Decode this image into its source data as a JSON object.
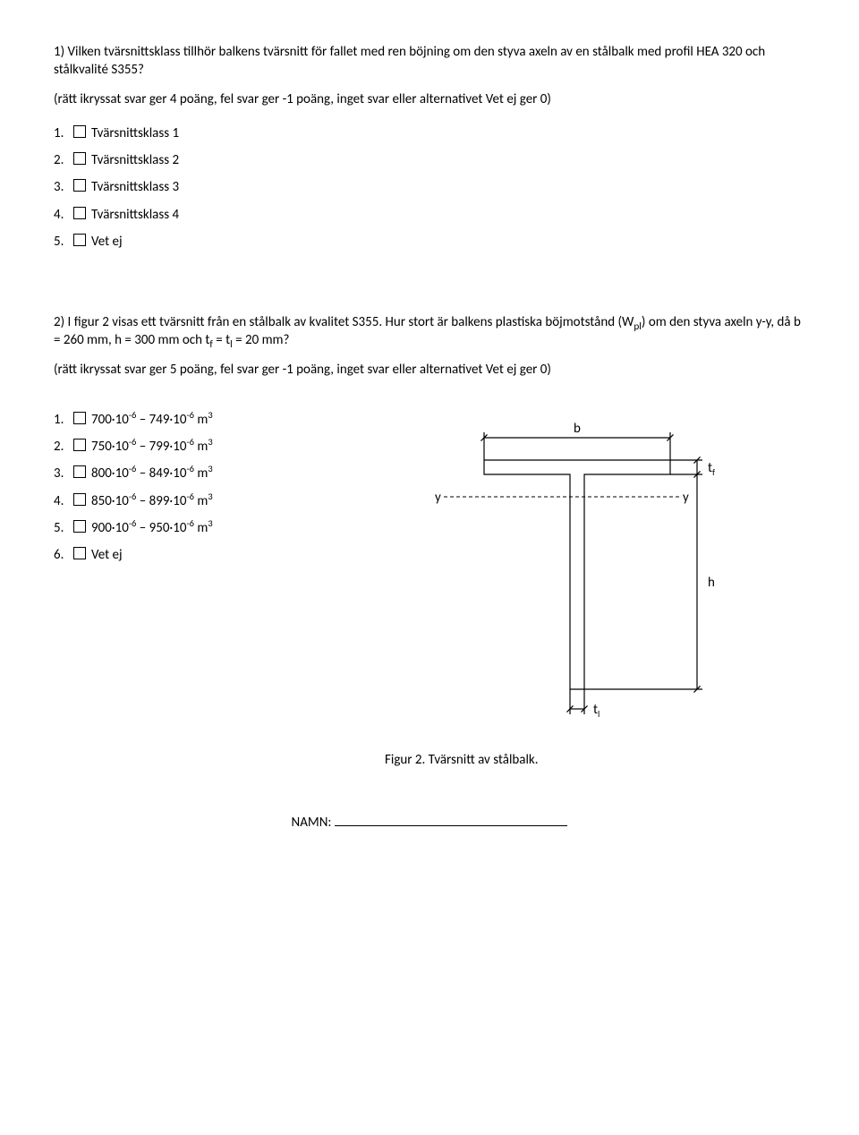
{
  "q1": {
    "text": "1) Vilken tvärsnittsklass tillhör balkens tvärsnitt för fallet med ren böjning om den styva axeln av en stålbalk med profil HEA 320 och stålkvalité S355?",
    "scoring": "(rätt ikryssat svar ger 4 poäng, fel svar ger -1 poäng, inget svar eller alternativet Vet ej ger 0)",
    "options": [
      {
        "num": "1.",
        "label": "Tvärsnittsklass 1"
      },
      {
        "num": "2.",
        "label": "Tvärsnittsklass 2"
      },
      {
        "num": "3.",
        "label": "Tvärsnittsklass 3"
      },
      {
        "num": "4.",
        "label": "Tvärsnittsklass 4"
      },
      {
        "num": "5.",
        "label": "Vet ej"
      }
    ]
  },
  "q2": {
    "text_pre": "2) I figur 2 visas ett tvärsnitt från en stålbalk av kvalitet S355. Hur stort är balkens plastiska böjmotstånd (W",
    "text_sub1": "pl",
    "text_mid": ") om den styva axeln y-y, då b = 260 mm, h = 300 mm och t",
    "text_sub2": "f",
    "text_mid2": " = t",
    "text_sub3": "l",
    "text_post": " = 20 mm?",
    "scoring": "(rätt ikryssat svar ger 5 poäng, fel svar ger -1 poäng, inget svar eller alternativet Vet ej ger 0)",
    "options": [
      {
        "num": "1.",
        "a": "700·10",
        "supA": "-6",
        "dash": " – ",
        "b": "749·10",
        "supB": "-6",
        "unit": " m",
        "supU": "3"
      },
      {
        "num": "2.",
        "a": "750·10",
        "supA": "-6",
        "dash": " – ",
        "b": "799·10",
        "supB": "-6",
        "unit": " m",
        "supU": "3"
      },
      {
        "num": "3.",
        "a": "800·10",
        "supA": "-6",
        "dash": " – ",
        "b": "849·10",
        "supB": "-6",
        "unit": " m",
        "supU": "3"
      },
      {
        "num": "4.",
        "a": "850·10",
        "supA": "-6",
        "dash": " – ",
        "b": "899·10",
        "supB": "-6",
        "unit": " m",
        "supU": "3"
      },
      {
        "num": "5.",
        "a": "900·10",
        "supA": "-6",
        "dash": " – ",
        "b": "950·10",
        "supB": "-6",
        "unit": " m",
        "supU": "3"
      },
      {
        "num": "6.",
        "plain": "Vet ej"
      }
    ],
    "figure": {
      "caption": "Figur 2. Tvärsnitt av stålbalk.",
      "labels": {
        "b": "b",
        "tf": "t",
        "tf_sub": "f",
        "h": "h",
        "tl": "t",
        "tl_sub": "l",
        "y": "y"
      },
      "stroke": "#000000",
      "stroke_width": 1.2,
      "dash": "4 3",
      "dim_b": 260,
      "dim_h": 300,
      "dim_tf": 20,
      "dim_tl": 20
    }
  },
  "footer": {
    "label": "NAMN:"
  }
}
